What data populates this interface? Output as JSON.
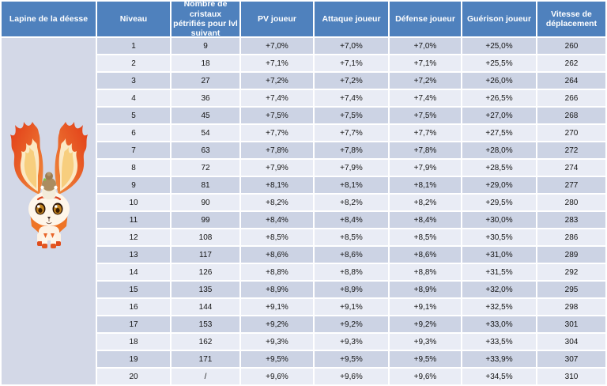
{
  "colors": {
    "header_bg": "#4f81bd",
    "header_text": "#ffffff",
    "row_odd": "#ccd3e4",
    "row_even": "#e9ecf5",
    "pet_cell_bg": "#d3d8e7",
    "grid_lines": "#ffffff",
    "body_text": "#141414"
  },
  "pet": {
    "name": "Lapine de la déesse",
    "illustration": "goddess-bunny-pet-with-flame-ears-and-rider"
  },
  "table": {
    "corner_header": "Lapine de la déesse",
    "headers": [
      "Niveau",
      "Nombre de cristaux pétrifiés pour lvl suivant",
      "PV joueur",
      "Attaque joueur",
      "Défense joueur",
      "Guérison joueur",
      "Vitesse de déplacement"
    ],
    "rows": [
      [
        "1",
        "9",
        "+7,0%",
        "+7,0%",
        "+7,0%",
        "+25,0%",
        "260"
      ],
      [
        "2",
        "18",
        "+7,1%",
        "+7,1%",
        "+7,1%",
        "+25,5%",
        "262"
      ],
      [
        "3",
        "27",
        "+7,2%",
        "+7,2%",
        "+7,2%",
        "+26,0%",
        "264"
      ],
      [
        "4",
        "36",
        "+7,4%",
        "+7,4%",
        "+7,4%",
        "+26,5%",
        "266"
      ],
      [
        "5",
        "45",
        "+7,5%",
        "+7,5%",
        "+7,5%",
        "+27,0%",
        "268"
      ],
      [
        "6",
        "54",
        "+7,7%",
        "+7,7%",
        "+7,7%",
        "+27,5%",
        "270"
      ],
      [
        "7",
        "63",
        "+7,8%",
        "+7,8%",
        "+7,8%",
        "+28,0%",
        "272"
      ],
      [
        "8",
        "72",
        "+7,9%",
        "+7,9%",
        "+7,9%",
        "+28,5%",
        "274"
      ],
      [
        "9",
        "81",
        "+8,1%",
        "+8,1%",
        "+8,1%",
        "+29,0%",
        "277"
      ],
      [
        "10",
        "90",
        "+8,2%",
        "+8,2%",
        "+8,2%",
        "+29,5%",
        "280"
      ],
      [
        "11",
        "99",
        "+8,4%",
        "+8,4%",
        "+8,4%",
        "+30,0%",
        "283"
      ],
      [
        "12",
        "108",
        "+8,5%",
        "+8,5%",
        "+8,5%",
        "+30,5%",
        "286"
      ],
      [
        "13",
        "117",
        "+8,6%",
        "+8,6%",
        "+8,6%",
        "+31,0%",
        "289"
      ],
      [
        "14",
        "126",
        "+8,8%",
        "+8,8%",
        "+8,8%",
        "+31,5%",
        "292"
      ],
      [
        "15",
        "135",
        "+8,9%",
        "+8,9%",
        "+8,9%",
        "+32,0%",
        "295"
      ],
      [
        "16",
        "144",
        "+9,1%",
        "+9,1%",
        "+9,1%",
        "+32,5%",
        "298"
      ],
      [
        "17",
        "153",
        "+9,2%",
        "+9,2%",
        "+9,2%",
        "+33,0%",
        "301"
      ],
      [
        "18",
        "162",
        "+9,3%",
        "+9,3%",
        "+9,3%",
        "+33,5%",
        "304"
      ],
      [
        "19",
        "171",
        "+9,5%",
        "+9,5%",
        "+9,5%",
        "+33,9%",
        "307"
      ],
      [
        "20",
        "/",
        "+9,6%",
        "+9,6%",
        "+9,6%",
        "+34,5%",
        "310"
      ]
    ]
  }
}
